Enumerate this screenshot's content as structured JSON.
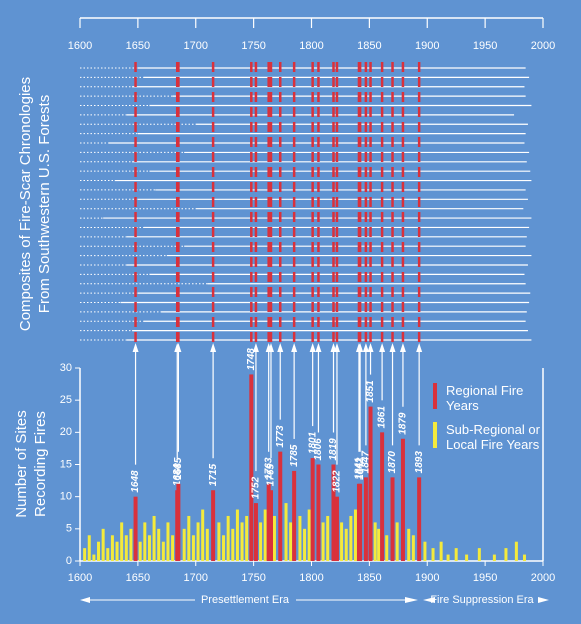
{
  "chart_data": [
    {
      "type": "composite",
      "ylabel": [
        "Composites of Fire-Scar Chronologies",
        "From Southwestern U.S. Forests"
      ],
      "xlim": [
        1600,
        2000
      ],
      "xticks": [
        1600,
        1650,
        1700,
        1750,
        1800,
        1850,
        1900,
        1950,
        2000
      ],
      "start": [
        1650,
        1655,
        1645,
        1680,
        1660,
        1640,
        1700,
        1650,
        1625,
        1690,
        1645,
        1660,
        1630,
        1665,
        1650,
        1700,
        1620,
        1655,
        1640,
        1690,
        1675,
        1640,
        1660,
        1710,
        1650,
        1635,
        1670,
        1655,
        1645,
        1640
      ],
      "end": [
        1985,
        1988,
        1984,
        1985,
        1990,
        1975,
        1987,
        1985,
        1984,
        1988,
        1986,
        1989,
        1990,
        1985,
        1987,
        1983,
        1990,
        1988,
        1986,
        1985,
        1990,
        1987,
        1984,
        1985,
        1989,
        1988,
        1986,
        1985,
        1987,
        1990
      ]
    },
    {
      "type": "bar",
      "ylabel": [
        "Number of Sites",
        "Recording Fires"
      ],
      "xlim": [
        1600,
        2000
      ],
      "xticks": [
        1600,
        1650,
        1700,
        1750,
        1800,
        1850,
        1900,
        1950,
        2000
      ],
      "ylim": [
        0,
        30
      ],
      "yticks": [
        0,
        5,
        10,
        15,
        20,
        25,
        30
      ],
      "annotations": [
        "Presettlement Era",
        "Fire Suppression Era"
      ],
      "series": [
        {
          "name": "Regional Fire Years",
          "color": "#d9313c",
          "x": [
            1648,
            1684,
            1685,
            1715,
            1748,
            1752,
            1763,
            1765,
            1773,
            1785,
            1801,
            1806,
            1819,
            1822,
            1841,
            1842,
            1847,
            1851,
            1861,
            1870,
            1879,
            1893
          ],
          "values": [
            10,
            11,
            12,
            11,
            29,
            9,
            12,
            11,
            17,
            14,
            16,
            15,
            15,
            10,
            12,
            12,
            13,
            24,
            20,
            13,
            19,
            13
          ]
        },
        {
          "name": "Sub-Regional or Local Fire Years",
          "color": "#f4ea3c",
          "x": [
            1604,
            1608,
            1612,
            1616,
            1620,
            1624,
            1628,
            1632,
            1636,
            1640,
            1644,
            1652,
            1656,
            1660,
            1664,
            1668,
            1672,
            1676,
            1680,
            1690,
            1694,
            1698,
            1702,
            1706,
            1710,
            1720,
            1724,
            1728,
            1732,
            1736,
            1740,
            1744,
            1756,
            1760,
            1768,
            1778,
            1782,
            1790,
            1794,
            1798,
            1810,
            1814,
            1826,
            1830,
            1834,
            1838,
            1855,
            1858,
            1865,
            1874,
            1884,
            1888,
            1898,
            1905,
            1912,
            1918,
            1925,
            1934,
            1945,
            1958,
            1968,
            1977,
            1984
          ],
          "values": [
            2,
            4,
            1,
            3,
            5,
            2,
            4,
            3,
            6,
            4,
            5,
            3,
            6,
            4,
            7,
            5,
            3,
            6,
            4,
            5,
            7,
            4,
            6,
            8,
            5,
            6,
            4,
            7,
            5,
            8,
            6,
            7,
            6,
            8,
            7,
            9,
            6,
            7,
            5,
            8,
            6,
            7,
            6,
            5,
            7,
            8,
            6,
            5,
            4,
            6,
            5,
            4,
            3,
            2,
            3,
            1,
            2,
            1,
            2,
            1,
            2,
            3,
            1
          ]
        }
      ]
    }
  ]
}
